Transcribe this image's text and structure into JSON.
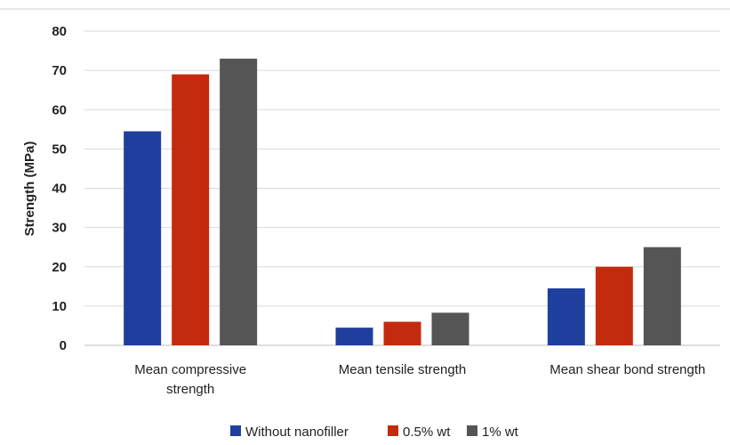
{
  "chart_data": {
    "type": "bar",
    "title": "",
    "xlabel": "",
    "ylabel": "Strength (MPa)",
    "ylim": [
      0,
      80
    ],
    "yticks": [
      0,
      10,
      20,
      30,
      40,
      50,
      60,
      70,
      80
    ],
    "grid": true,
    "legend_position": "bottom",
    "categories": [
      [
        "Mean compressive",
        "strength"
      ],
      [
        "Mean tensile strength"
      ],
      [
        "Mean shear bond strength"
      ]
    ],
    "series": [
      {
        "name": "Without nanofiller",
        "color": "#1f3f9e",
        "values": [
          54.5,
          4.5,
          14.5
        ]
      },
      {
        "name": "0.5% wt",
        "color": "#c42a0e",
        "values": [
          69,
          6,
          20
        ]
      },
      {
        "name": "1% wt",
        "color": "#555555",
        "values": [
          73,
          8.3,
          25
        ]
      }
    ]
  }
}
